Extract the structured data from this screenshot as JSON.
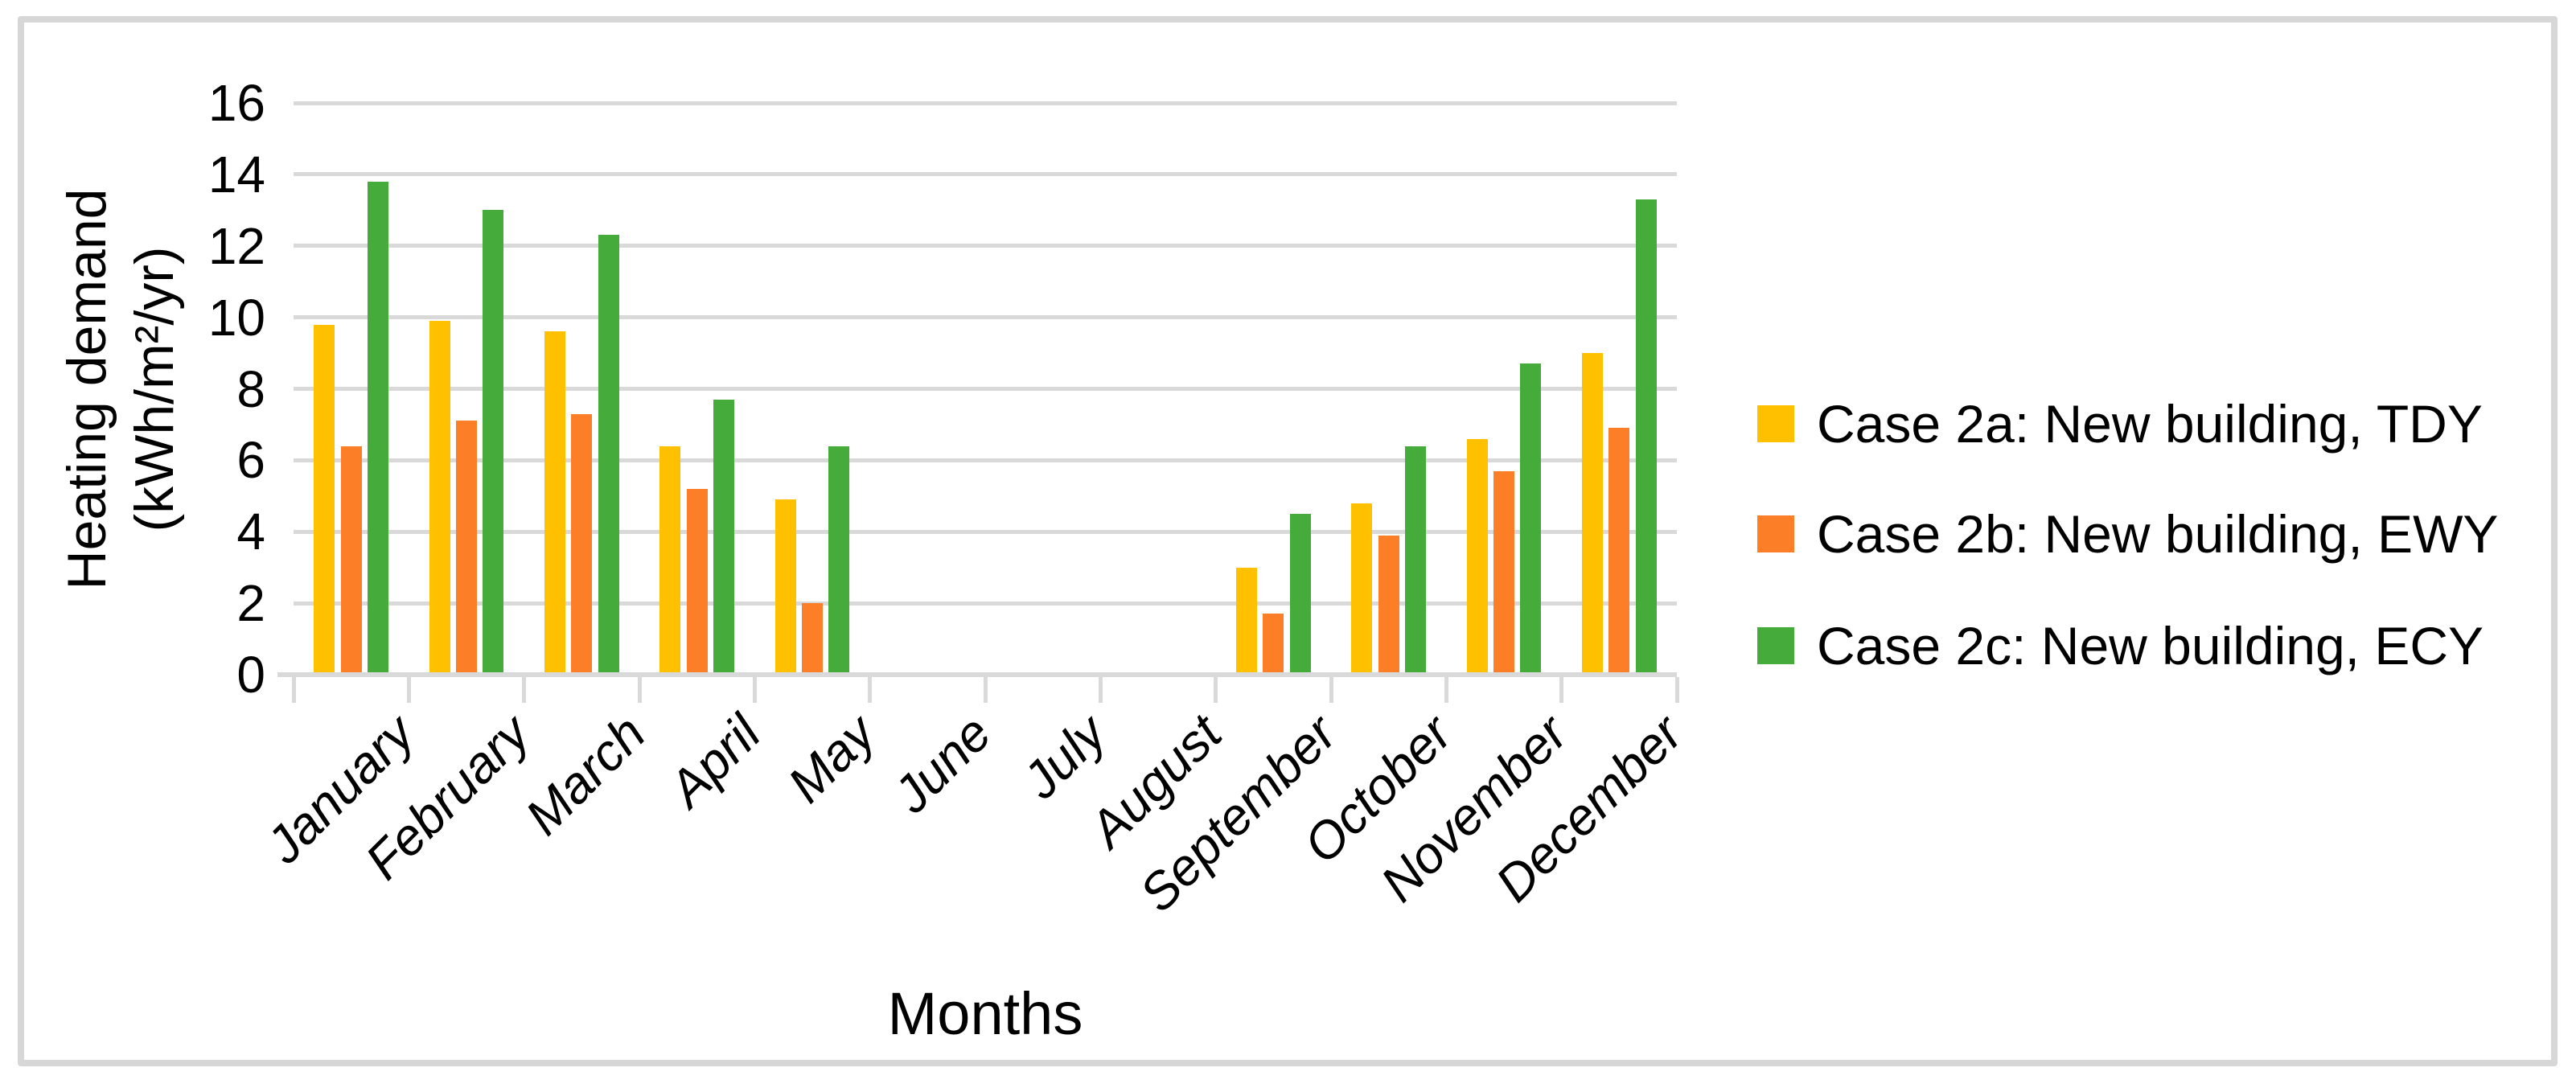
{
  "figure": {
    "background": "#FFFFFF",
    "border_color": "#D7D7D7",
    "gridline_color": "#D9D9D9",
    "axis_line_color": "#D9D9D9",
    "text_color": "#000000"
  },
  "chart_data": {
    "type": "bar",
    "title": "",
    "xlabel": "Months",
    "ylabel_line1": "Heating demand",
    "ylabel_line2": "(kWh/m²/yr)",
    "categories": [
      "January",
      "February",
      "March",
      "April",
      "May",
      "June",
      "July",
      "August",
      "September",
      "October",
      "November",
      "December"
    ],
    "series": [
      {
        "name": "Case 2a: New building, TDY",
        "color": "#FFC000",
        "values": [
          9.8,
          9.9,
          9.6,
          6.4,
          4.9,
          0,
          0,
          0,
          3.0,
          4.8,
          6.6,
          9.0
        ]
      },
      {
        "name": "Case 2b: New building, EWY",
        "color": "#FC7E27",
        "values": [
          6.4,
          7.1,
          7.3,
          5.2,
          2.0,
          0,
          0,
          0,
          1.7,
          3.9,
          5.7,
          6.9
        ]
      },
      {
        "name": "Case 2c: New building, ECY",
        "color": "#45AC3B",
        "values": [
          13.8,
          13.0,
          12.3,
          7.7,
          6.4,
          0,
          0,
          0,
          4.5,
          6.4,
          8.7,
          13.3
        ]
      }
    ],
    "ylim": [
      0,
      16
    ],
    "ytick_step": 2,
    "yticks": [
      0,
      2,
      4,
      6,
      8,
      10,
      12,
      14,
      16
    ],
    "grid": "horizontal",
    "legend_position": "right"
  }
}
